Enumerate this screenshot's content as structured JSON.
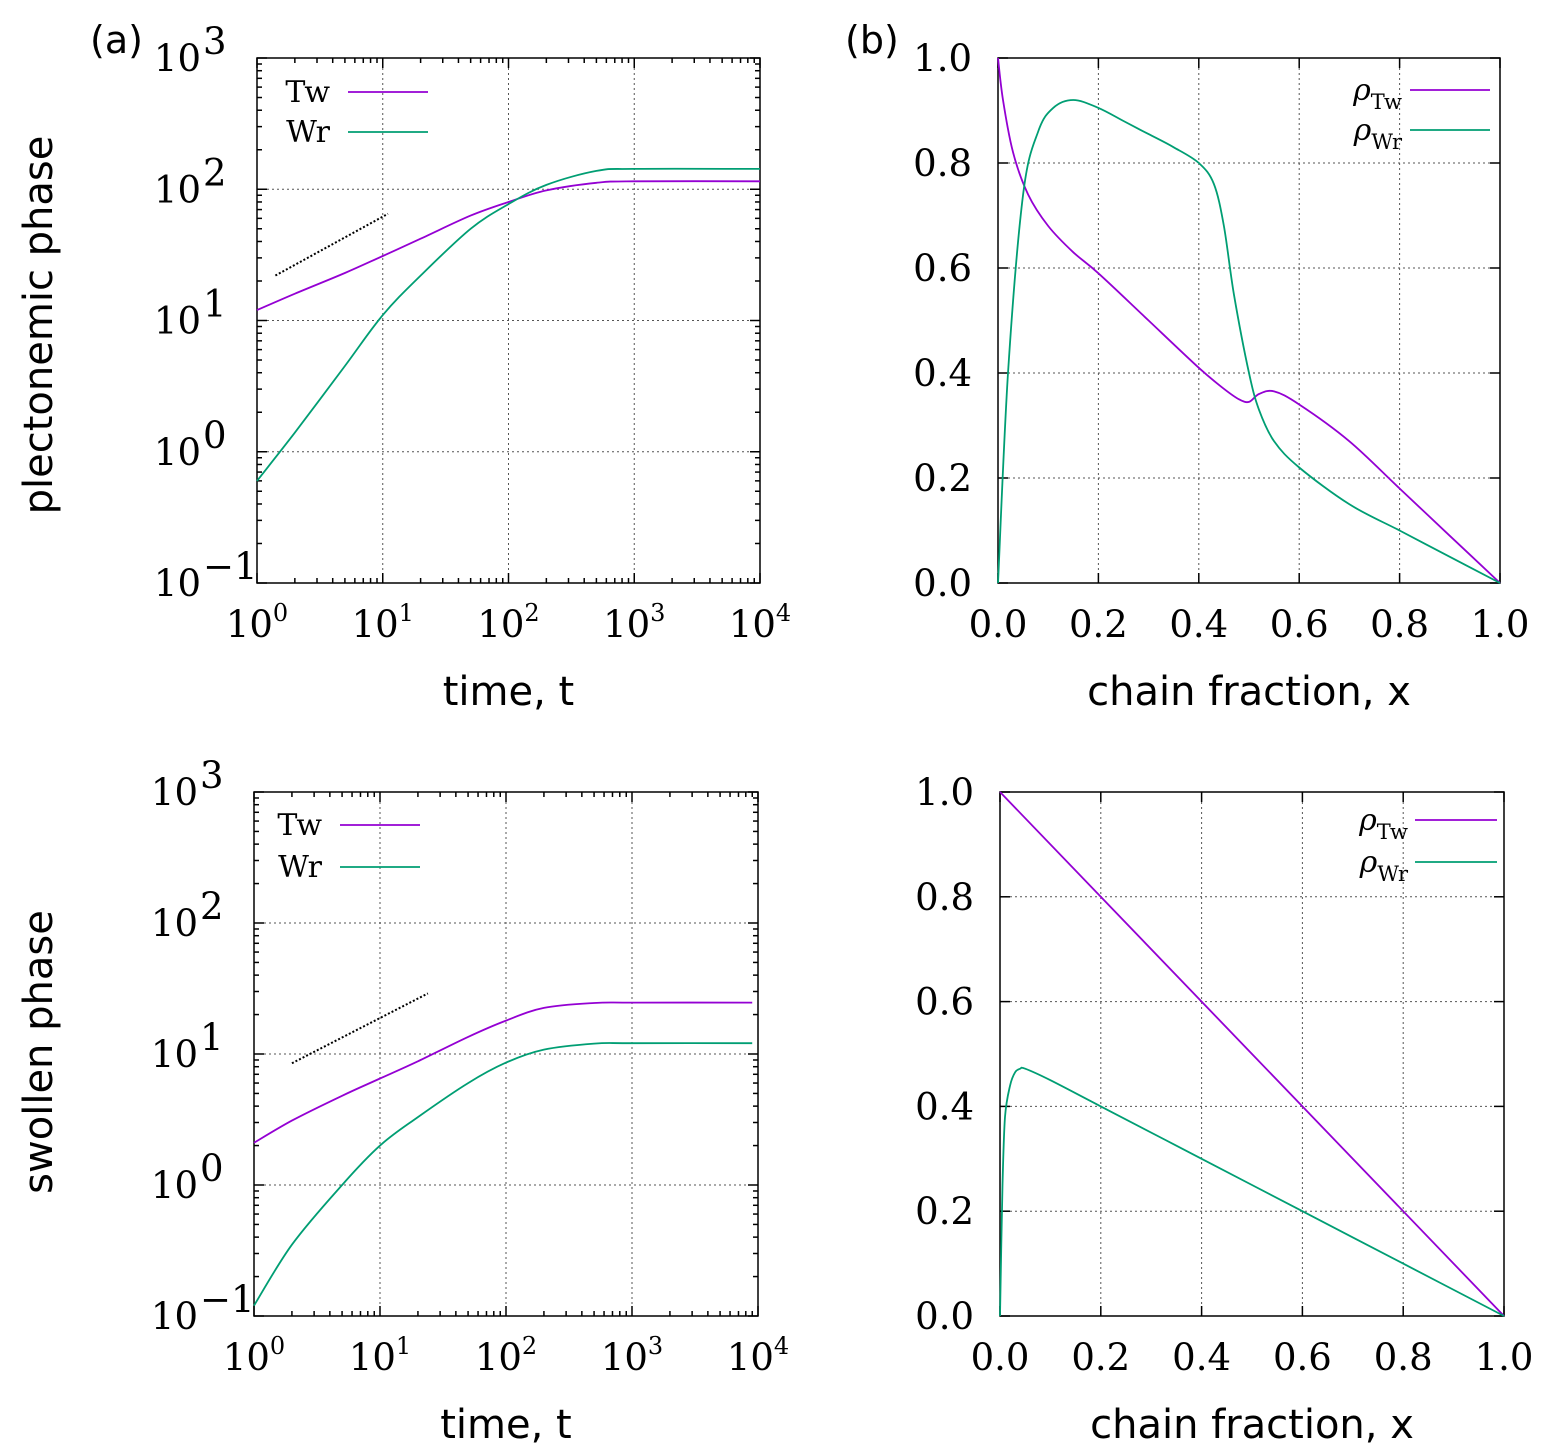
{
  "labels": {
    "panel_a": "(a)",
    "panel_b": "(b)",
    "row_top": "plectonemic phase",
    "row_bottom": "swollen phase"
  },
  "colors": {
    "tw": "#9400d3",
    "wr": "#009e73",
    "guide": "#000000"
  },
  "chart_data": [
    {
      "id": "a-top",
      "type": "line",
      "xscale": "log",
      "yscale": "log",
      "xlim": [
        1,
        10000
      ],
      "ylim": [
        0.1,
        1000
      ],
      "xticks": [
        1,
        10,
        100,
        1000,
        10000
      ],
      "xtick_labels": [
        {
          "base": "10",
          "exp": "0"
        },
        {
          "base": "10",
          "exp": "1"
        },
        {
          "base": "10",
          "exp": "2"
        },
        {
          "base": "10",
          "exp": "3"
        },
        {
          "base": "10",
          "exp": "4"
        }
      ],
      "yticks": [
        0.1,
        1,
        10,
        100,
        1000
      ],
      "ytick_labels": [
        {
          "base": "10",
          "exp": "−1"
        },
        {
          "base": "10",
          "exp": "0"
        },
        {
          "base": "10",
          "exp": "1"
        },
        {
          "base": "10",
          "exp": "2"
        },
        {
          "base": "10",
          "exp": "3"
        }
      ],
      "xlabel": "time, t",
      "ylabel": "",
      "grid": true,
      "legend_position": "top-left",
      "series": [
        {
          "name": "Tw",
          "color_key": "tw",
          "x": [
            1,
            2,
            5,
            10,
            20,
            50,
            100,
            200,
            500,
            1000,
            10000
          ],
          "y": [
            12,
            16,
            23,
            31,
            42,
            63,
            80,
            98,
            112,
            115,
            115
          ]
        },
        {
          "name": "Wr",
          "color_key": "wr",
          "x": [
            1,
            2,
            5,
            10,
            20,
            50,
            100,
            200,
            500,
            1000,
            10000
          ],
          "y": [
            0.6,
            1.4,
            4.5,
            11,
            22,
            50,
            77,
            108,
            138,
            143,
            143
          ]
        }
      ],
      "guide": {
        "x": [
          1.4,
          11
        ],
        "y": [
          22,
          65
        ]
      }
    },
    {
      "id": "b-top",
      "type": "line",
      "xscale": "linear",
      "yscale": "linear",
      "xlim": [
        0,
        1
      ],
      "ylim": [
        0,
        1
      ],
      "xticks": [
        0,
        0.2,
        0.4,
        0.6,
        0.8,
        1.0
      ],
      "xtick_labels": [
        "0.0",
        "0.2",
        "0.4",
        "0.6",
        "0.8",
        "1.0"
      ],
      "yticks": [
        0,
        0.2,
        0.4,
        0.6,
        0.8,
        1.0
      ],
      "ytick_labels": [
        "0.0",
        "0.2",
        "0.4",
        "0.6",
        "0.8",
        "1.0"
      ],
      "xlabel": "chain fraction, x",
      "ylabel": "",
      "grid": true,
      "legend_position": "top-right",
      "series": [
        {
          "name": "ρ",
          "sub": "Tw",
          "color_key": "tw",
          "x": [
            0,
            0.01,
            0.03,
            0.06,
            0.1,
            0.15,
            0.2,
            0.3,
            0.4,
            0.45,
            0.48,
            0.5,
            0.52,
            0.55,
            0.6,
            0.7,
            0.8,
            0.9,
            1.0
          ],
          "y": [
            1.0,
            0.92,
            0.82,
            0.74,
            0.68,
            0.63,
            0.59,
            0.5,
            0.41,
            0.37,
            0.35,
            0.345,
            0.36,
            0.365,
            0.34,
            0.27,
            0.18,
            0.09,
            0.0
          ]
        },
        {
          "name": "ρ",
          "sub": "Wr",
          "color_key": "wr",
          "x": [
            0,
            0.02,
            0.05,
            0.08,
            0.11,
            0.15,
            0.2,
            0.25,
            0.3,
            0.35,
            0.4,
            0.43,
            0.45,
            0.47,
            0.5,
            0.52,
            0.55,
            0.6,
            0.7,
            0.8,
            0.9,
            1.0
          ],
          "y": [
            0.0,
            0.4,
            0.74,
            0.86,
            0.905,
            0.92,
            0.905,
            0.88,
            0.855,
            0.83,
            0.8,
            0.76,
            0.68,
            0.55,
            0.4,
            0.33,
            0.27,
            0.22,
            0.15,
            0.1,
            0.05,
            0.0
          ]
        }
      ]
    },
    {
      "id": "a-bottom",
      "type": "line",
      "xscale": "log",
      "yscale": "log",
      "xlim": [
        1,
        10000
      ],
      "ylim": [
        0.1,
        1000
      ],
      "xticks": [
        1,
        10,
        100,
        1000,
        10000
      ],
      "xtick_labels": [
        {
          "base": "10",
          "exp": "0"
        },
        {
          "base": "10",
          "exp": "1"
        },
        {
          "base": "10",
          "exp": "2"
        },
        {
          "base": "10",
          "exp": "3"
        },
        {
          "base": "10",
          "exp": "4"
        }
      ],
      "yticks": [
        0.1,
        1,
        10,
        100,
        1000
      ],
      "ytick_labels": [
        {
          "base": "10",
          "exp": "−1"
        },
        {
          "base": "10",
          "exp": "0"
        },
        {
          "base": "10",
          "exp": "1"
        },
        {
          "base": "10",
          "exp": "2"
        },
        {
          "base": "10",
          "exp": "3"
        }
      ],
      "xlabel": "time, t",
      "ylabel": "",
      "grid": true,
      "legend_position": "top-left",
      "series": [
        {
          "name": "Tw",
          "color_key": "tw",
          "x": [
            1,
            2,
            5,
            10,
            20,
            50,
            100,
            200,
            500,
            1000,
            9000
          ],
          "y": [
            2.1,
            3.1,
            4.8,
            6.5,
            8.8,
            13.5,
            18,
            22.5,
            24.5,
            24.7,
            24.7
          ]
        },
        {
          "name": "Wr",
          "color_key": "wr",
          "x": [
            1,
            2,
            5,
            10,
            20,
            50,
            100,
            200,
            500,
            1000,
            9000
          ],
          "y": [
            0.12,
            0.35,
            1.0,
            2.0,
            3.3,
            6.0,
            8.6,
            10.8,
            12.0,
            12.1,
            12.1
          ]
        }
      ],
      "guide": {
        "x": [
          2,
          24
        ],
        "y": [
          8.5,
          29
        ]
      }
    },
    {
      "id": "b-bottom",
      "type": "line",
      "xscale": "linear",
      "yscale": "linear",
      "xlim": [
        0,
        1
      ],
      "ylim": [
        0,
        1
      ],
      "xticks": [
        0,
        0.2,
        0.4,
        0.6,
        0.8,
        1.0
      ],
      "xtick_labels": [
        "0.0",
        "0.2",
        "0.4",
        "0.6",
        "0.8",
        "1.0"
      ],
      "yticks": [
        0,
        0.2,
        0.4,
        0.6,
        0.8,
        1.0
      ],
      "ytick_labels": [
        "0.0",
        "0.2",
        "0.4",
        "0.6",
        "0.8",
        "1.0"
      ],
      "xlabel": "chain fraction, x",
      "ylabel": "",
      "grid": true,
      "legend_position": "top-right",
      "series": [
        {
          "name": "ρ",
          "sub": "Tw",
          "color_key": "tw",
          "x": [
            0,
            1.0
          ],
          "y": [
            1.0,
            0.0
          ]
        },
        {
          "name": "ρ",
          "sub": "Wr",
          "color_key": "wr",
          "x": [
            0,
            0.005,
            0.01,
            0.02,
            0.03,
            0.04,
            0.05,
            0.1,
            0.2,
            0.4,
            0.6,
            0.8,
            1.0
          ],
          "y": [
            0.0,
            0.25,
            0.38,
            0.44,
            0.465,
            0.472,
            0.472,
            0.45,
            0.4,
            0.3,
            0.2,
            0.1,
            0.0
          ]
        }
      ]
    }
  ]
}
